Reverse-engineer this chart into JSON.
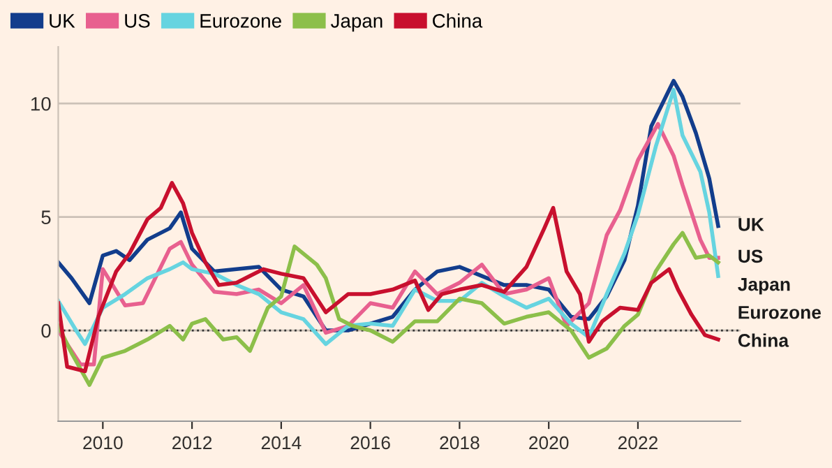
{
  "chart_data": {
    "type": "line",
    "legend": "top left",
    "grid": "y",
    "line_style": "solid",
    "xlim": [
      2009,
      2024.3
    ],
    "ylim": [
      -4,
      12.5
    ],
    "xticks": [
      2010,
      2012,
      2014,
      2016,
      2018,
      2020,
      2022
    ],
    "yticks": [
      0,
      5,
      10
    ],
    "ref_lines": [
      {
        "axis": "y",
        "value": 0,
        "line_style": "dotted",
        "color": "#333333"
      }
    ],
    "series": [
      {
        "name": "UK",
        "color": "#123d8c",
        "x": [
          2009,
          2009.3,
          2009.7,
          2010,
          2010.3,
          2010.6,
          2011,
          2011.5,
          2011.75,
          2012,
          2012.5,
          2013,
          2013.5,
          2014,
          2014.5,
          2015,
          2015.5,
          2016,
          2016.5,
          2017,
          2017.5,
          2018,
          2018.5,
          2019,
          2019.5,
          2020,
          2020.5,
          2020.9,
          2021.3,
          2021.7,
          2022,
          2022.3,
          2022.8,
          2023,
          2023.3,
          2023.6,
          2023.8
        ],
        "values": [
          3.0,
          2.3,
          1.2,
          3.3,
          3.5,
          3.1,
          4.0,
          4.5,
          5.2,
          3.6,
          2.6,
          2.7,
          2.8,
          1.8,
          1.5,
          0.0,
          0.0,
          0.3,
          0.6,
          1.8,
          2.6,
          2.8,
          2.4,
          2.0,
          2.0,
          1.8,
          0.6,
          0.5,
          1.5,
          3.1,
          5.5,
          9.0,
          11.0,
          10.3,
          8.7,
          6.7,
          4.6
        ]
      },
      {
        "name": "US",
        "color": "#e8608f",
        "x": [
          2009,
          2009.5,
          2009.8,
          2010,
          2010.5,
          2010.9,
          2011.5,
          2011.75,
          2012,
          2012.5,
          2013,
          2013.5,
          2014,
          2014.5,
          2015,
          2015.5,
          2016,
          2016.5,
          2017,
          2017.5,
          2018,
          2018.5,
          2019,
          2019.5,
          2020,
          2020.4,
          2020.9,
          2021.3,
          2021.6,
          2022,
          2022.45,
          2022.8,
          2023,
          2023.4,
          2023.6,
          2023.8
        ],
        "values": [
          0.0,
          -1.5,
          -1.5,
          2.7,
          1.1,
          1.2,
          3.6,
          3.9,
          2.9,
          1.7,
          1.6,
          1.8,
          1.2,
          2.0,
          -0.1,
          0.2,
          1.2,
          1.0,
          2.6,
          1.6,
          2.1,
          2.9,
          1.6,
          1.8,
          2.3,
          0.2,
          1.2,
          4.2,
          5.3,
          7.5,
          9.1,
          7.7,
          6.4,
          4.0,
          3.2,
          3.2
        ]
      },
      {
        "name": "Eurozone",
        "color": "#66d4e0",
        "x": [
          2009,
          2009.4,
          2009.6,
          2010,
          2010.5,
          2011,
          2011.5,
          2011.8,
          2012,
          2012.5,
          2013,
          2013.5,
          2014,
          2014.5,
          2015,
          2015.5,
          2016,
          2016.5,
          2017,
          2017.5,
          2018,
          2018.5,
          2019,
          2019.5,
          2020,
          2020.5,
          2020.9,
          2021.3,
          2021.7,
          2022,
          2022.4,
          2022.8,
          2023,
          2023.4,
          2023.6,
          2023.8
        ],
        "values": [
          1.3,
          0.0,
          -0.6,
          1.0,
          1.6,
          2.3,
          2.7,
          3.0,
          2.7,
          2.5,
          2.0,
          1.6,
          0.8,
          0.5,
          -0.6,
          0.2,
          0.3,
          0.2,
          1.8,
          1.3,
          1.3,
          2.1,
          1.5,
          1.0,
          1.4,
          0.3,
          -0.3,
          1.6,
          3.4,
          5.1,
          8.1,
          10.6,
          8.6,
          7.0,
          5.2,
          2.4
        ]
      },
      {
        "name": "Japan",
        "color": "#8cbf4a",
        "x": [
          2009,
          2009.3,
          2009.7,
          2010,
          2010.5,
          2011,
          2011.5,
          2011.8,
          2012,
          2012.3,
          2012.7,
          2013,
          2013.3,
          2013.7,
          2014,
          2014.3,
          2014.8,
          2015,
          2015.3,
          2015.6,
          2016,
          2016.5,
          2017,
          2017.5,
          2018,
          2018.5,
          2019,
          2019.5,
          2020,
          2020.5,
          2020.9,
          2021.3,
          2021.7,
          2022,
          2022.4,
          2022.8,
          2023,
          2023.3,
          2023.6,
          2023.8
        ],
        "values": [
          0.2,
          -1.0,
          -2.4,
          -1.2,
          -0.9,
          -0.4,
          0.2,
          -0.4,
          0.3,
          0.5,
          -0.4,
          -0.3,
          -0.9,
          1.0,
          1.5,
          3.7,
          2.9,
          2.3,
          0.5,
          0.2,
          0.0,
          -0.5,
          0.4,
          0.4,
          1.4,
          1.2,
          0.3,
          0.6,
          0.8,
          0.0,
          -1.2,
          -0.8,
          0.2,
          0.7,
          2.6,
          3.8,
          4.3,
          3.2,
          3.3,
          3.0
        ]
      },
      {
        "name": "China",
        "color": "#c8102e",
        "x": [
          2009,
          2009.2,
          2009.6,
          2009.9,
          2010.3,
          2010.6,
          2011,
          2011.3,
          2011.55,
          2011.8,
          2012,
          2012.3,
          2012.6,
          2013,
          2013.3,
          2013.6,
          2014,
          2014.5,
          2015,
          2015.5,
          2016,
          2016.5,
          2017,
          2017.3,
          2017.6,
          2018,
          2018.5,
          2019,
          2019.5,
          2019.9,
          2020.1,
          2020.4,
          2020.7,
          2020.9,
          2021.2,
          2021.6,
          2022,
          2022.3,
          2022.7,
          2022.9,
          2023.2,
          2023.5,
          2023.8
        ],
        "values": [
          1.2,
          -1.6,
          -1.8,
          0.6,
          2.6,
          3.4,
          4.9,
          5.4,
          6.5,
          5.6,
          4.3,
          3.0,
          2.0,
          2.1,
          2.4,
          2.7,
          2.5,
          2.3,
          0.8,
          1.6,
          1.6,
          1.8,
          2.2,
          0.9,
          1.6,
          1.8,
          2.0,
          1.7,
          2.8,
          4.5,
          5.4,
          2.6,
          1.6,
          -0.5,
          0.4,
          1.0,
          0.9,
          2.1,
          2.7,
          1.8,
          0.7,
          -0.2,
          -0.4
        ]
      }
    ]
  }
}
